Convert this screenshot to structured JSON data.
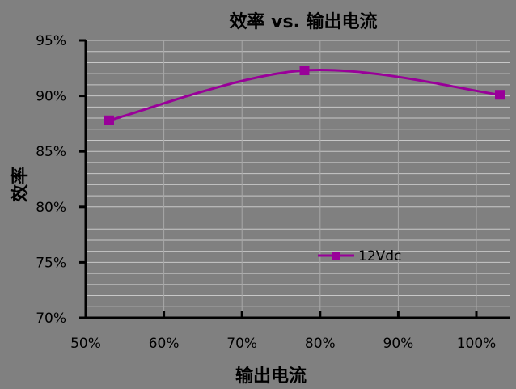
{
  "chart_data": {
    "type": "line",
    "title": "效率 vs. 输出电流",
    "xlabel": "输出电流",
    "ylabel": "效率",
    "x": [
      53,
      78,
      103
    ],
    "series": [
      {
        "name": "12Vdc",
        "values": [
          87.8,
          92.3,
          90.1
        ],
        "color": "#990099",
        "marker": "square",
        "smooth": true
      }
    ],
    "xlim": [
      50,
      100
    ],
    "ylim": [
      70,
      95
    ],
    "xticks": [
      {
        "value": 50,
        "label": "50%"
      },
      {
        "value": 60,
        "label": "60%"
      },
      {
        "value": 70,
        "label": "70%"
      },
      {
        "value": 80,
        "label": "80%"
      },
      {
        "value": 90,
        "label": "90%"
      },
      {
        "value": 100,
        "label": "100%"
      }
    ],
    "yticks": [
      {
        "value": 70,
        "label": "70%"
      },
      {
        "value": 75,
        "label": "75%"
      },
      {
        "value": 80,
        "label": "80%"
      },
      {
        "value": 85,
        "label": "85%"
      },
      {
        "value": 90,
        "label": "90%"
      },
      {
        "value": 95,
        "label": "95%"
      }
    ],
    "grid": true,
    "legend_position": "lower-right",
    "colors": {
      "background": "#808080",
      "gridline": "#c8c8c8",
      "axis": "#000000",
      "series": "#990099"
    }
  }
}
